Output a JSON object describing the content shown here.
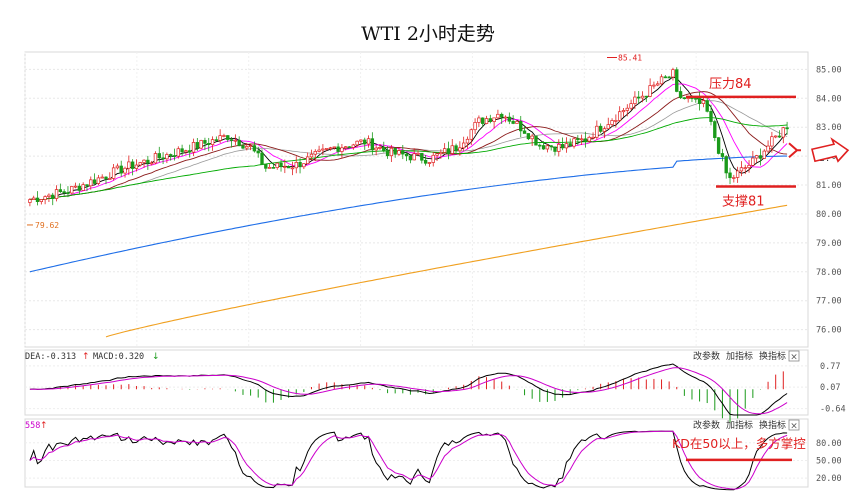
{
  "chart_data": [
    {
      "panel": "main",
      "type": "candlestick",
      "title": "WTI 2小时走势",
      "ylim": [
        75.4,
        85.6
      ],
      "y_ticks": [
        76.0,
        77.0,
        78.0,
        79.0,
        80.0,
        81.0,
        82.0,
        83.0,
        84.0,
        85.0
      ],
      "y_tick_labels": [
        "76.00",
        "77.00",
        "78.00",
        "79.00",
        "80.00",
        "81.00",
        "82.00",
        "83.00",
        "84.00",
        "85.00"
      ],
      "grid": true,
      "high_marker": {
        "value": 85.41,
        "label": "85.41"
      },
      "low_marker": {
        "value": 79.62,
        "label": "79.62"
      },
      "ma_colors": [
        "#000000",
        "#ff00ff",
        "#00aa00",
        "#1e6ee8",
        "#f0a020",
        "#8b1a1a",
        "#999999"
      ],
      "annotations": [
        {
          "text": "压力84",
          "level": 84.05,
          "color": "#e02020"
        },
        {
          "text": "支撑81",
          "level": 80.95,
          "color": "#e02020"
        }
      ],
      "arrow_label": "82.",
      "up_color": "#e02020",
      "down_color": "#1a9a1a"
    },
    {
      "panel": "macd",
      "type": "bar",
      "header_dea": "DEA:-0.313",
      "header_macd": "MACD:0.320",
      "ylim": [
        -0.85,
        0.9
      ],
      "y_ticks": [
        0.77,
        0.07,
        -0.64
      ],
      "y_tick_labels": [
        "0.77",
        "0.07",
        "-0.64"
      ],
      "colors": {
        "dif": "#000000",
        "dea": "#cc00cc",
        "pos": "#e02020",
        "neg": "#1a9a1a"
      }
    },
    {
      "panel": "kd",
      "type": "line",
      "header": "558",
      "ylim": [
        5,
        100
      ],
      "y_ticks": [
        80.0,
        50.0,
        20.0
      ],
      "y_tick_labels": [
        "80.00",
        "50.00",
        "20.00"
      ],
      "annotation": {
        "text": "KD在50以上，多方掌控",
        "level": 51,
        "color": "#e02020"
      },
      "colors": {
        "k": "#000000",
        "d": "#cc00cc"
      }
    }
  ],
  "panel_buttons": [
    "改参数",
    "加指标",
    "换指标"
  ],
  "close_glyph": "×"
}
